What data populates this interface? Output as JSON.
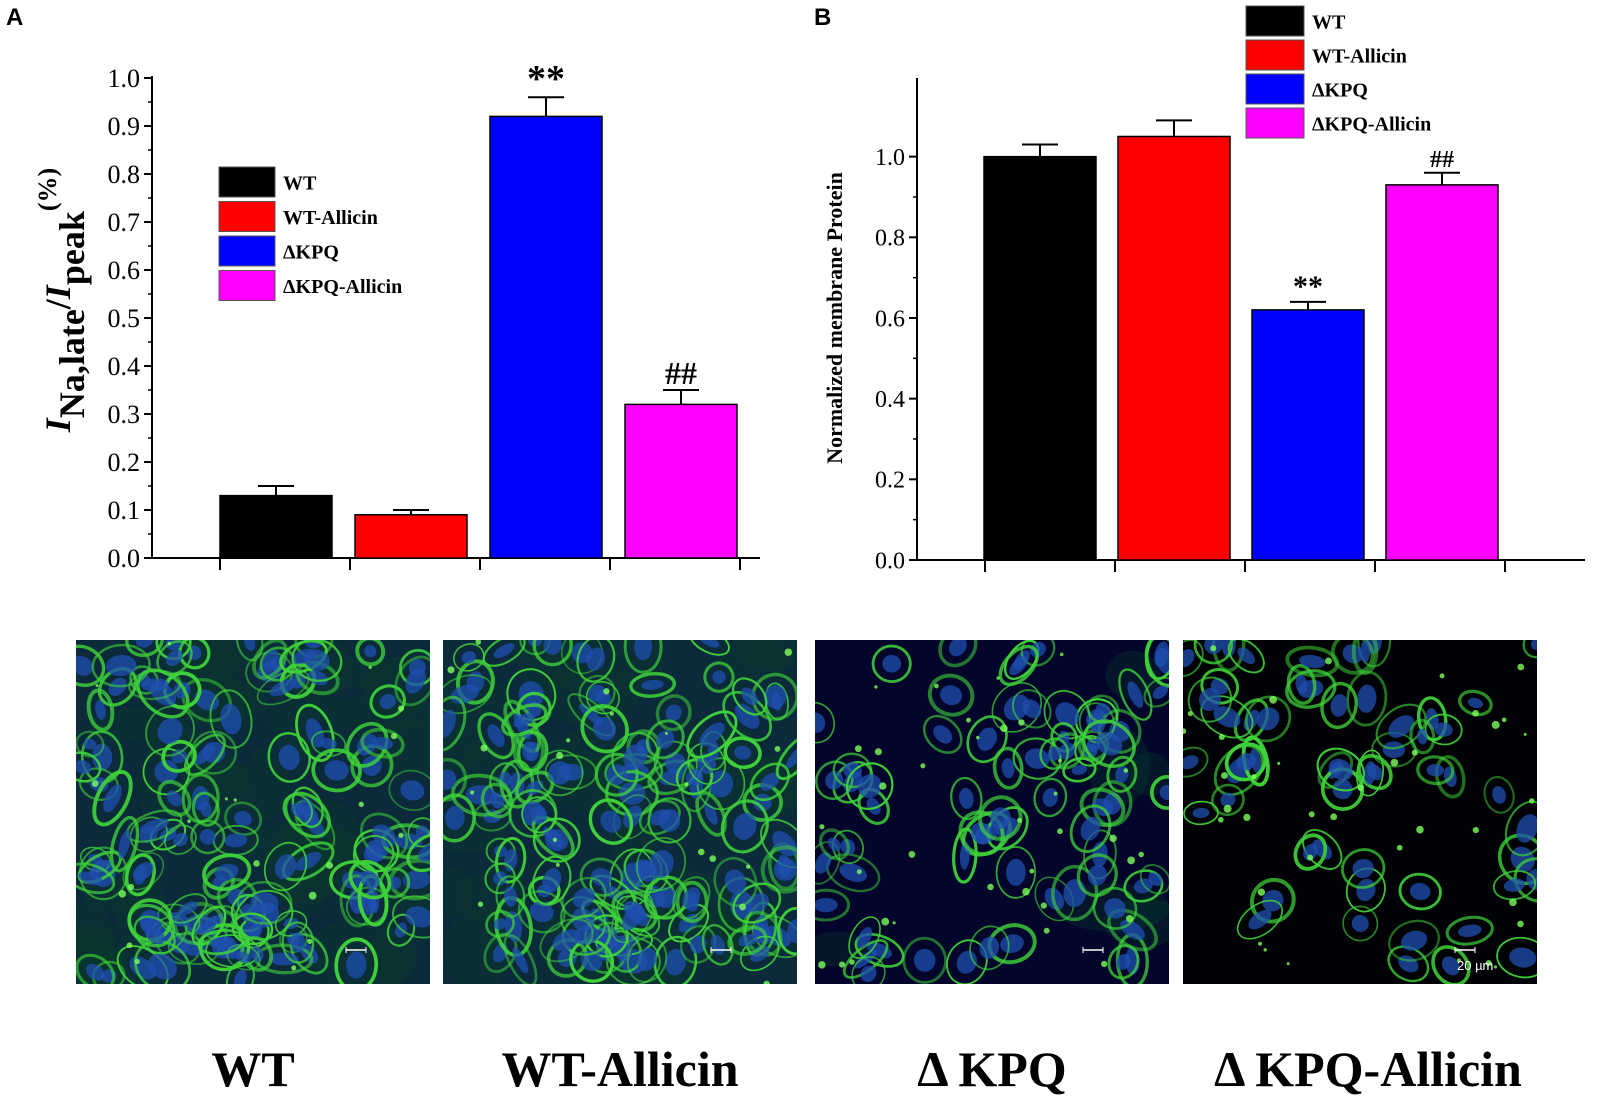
{
  "panel_labels": {
    "a": "A",
    "b": "B"
  },
  "chart_data": [
    {
      "type": "bar",
      "panel": "A",
      "categories": [
        "WT",
        "WT-Allicin",
        "ΔKPQ",
        "ΔKPQ-Allicin"
      ],
      "values": [
        0.13,
        0.09,
        0.92,
        0.32
      ],
      "errors": [
        0.02,
        0.01,
        0.04,
        0.03
      ],
      "significance": [
        "",
        "",
        "**",
        "##"
      ],
      "colors": [
        "#000000",
        "#ff0000",
        "#0000ff",
        "#ff00ff"
      ],
      "ylim": [
        0,
        1.0
      ],
      "yticks": [
        "0.0",
        "0.1",
        "0.2",
        "0.3",
        "0.4",
        "0.5",
        "0.6",
        "0.7",
        "0.8",
        "0.9",
        "1.0"
      ],
      "ylabel_parts": {
        "i1": "I",
        "sub1": "Na,late",
        "slash": "/",
        "i2": "I",
        "sub2": "peak",
        "unit": "(%)"
      },
      "legend": [
        "WT",
        "WT-Allicin",
        "ΔKPQ",
        "ΔKPQ-Allicin"
      ],
      "legend_position": "upper-left"
    },
    {
      "type": "bar",
      "panel": "B",
      "categories": [
        "WT",
        "WT-Allicin",
        "ΔKPQ",
        "ΔKPQ-Allicin"
      ],
      "values": [
        1.0,
        1.05,
        0.62,
        0.93
      ],
      "errors": [
        0.03,
        0.04,
        0.02,
        0.03
      ],
      "significance": [
        "",
        "",
        "**",
        "##"
      ],
      "colors": [
        "#000000",
        "#ff0000",
        "#0000ff",
        "#ff00ff"
      ],
      "ylim": [
        0,
        1.19
      ],
      "yticks": [
        "0.0",
        "0.2",
        "0.4",
        "0.6",
        "0.8",
        "1.0"
      ],
      "ylabel": "Normalized membrane Protein",
      "legend": [
        "WT",
        "WT-Allicin",
        "ΔKPQ",
        "ΔKPQ-Allicin"
      ],
      "legend_position": "top-right"
    }
  ],
  "micrographs": [
    {
      "label": "WT",
      "scale_text": ""
    },
    {
      "label": "WT-Allicin",
      "scale_text": ""
    },
    {
      "label": "Δ KPQ",
      "scale_text": ""
    },
    {
      "label": "Δ KPQ-Allicin",
      "scale_text": "20 µm"
    }
  ]
}
